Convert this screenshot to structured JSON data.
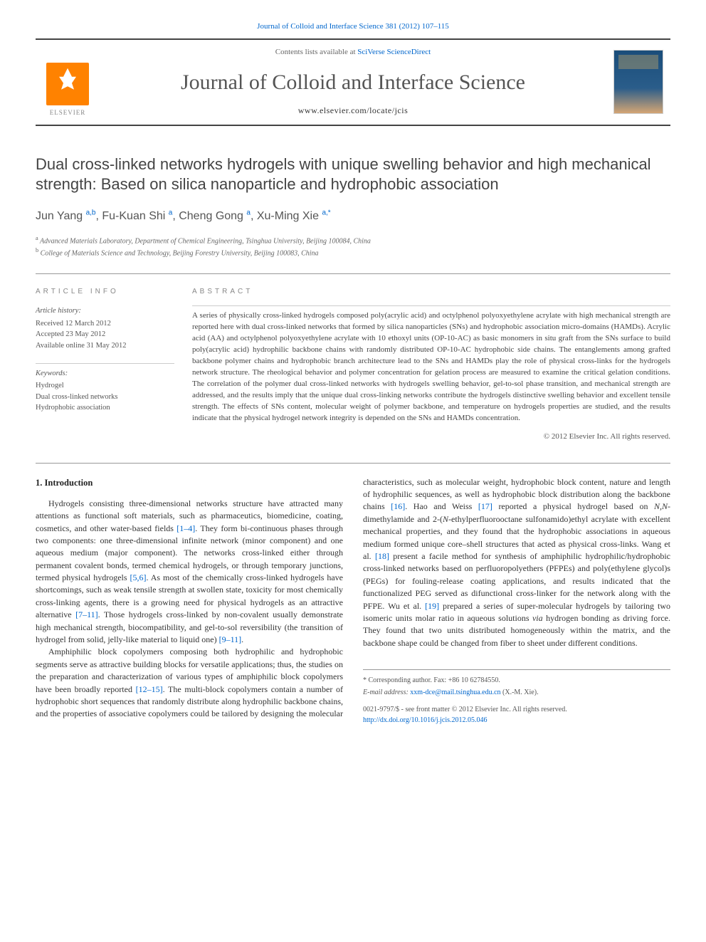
{
  "header": {
    "citation": "Journal of Colloid and Interface Science 381 (2012) 107–115",
    "contents_prefix": "Contents lists available at ",
    "contents_link": "SciVerse ScienceDirect",
    "journal_name": "Journal of Colloid and Interface Science",
    "journal_url": "www.elsevier.com/locate/jcis",
    "publisher_label": "ELSEVIER"
  },
  "title": "Dual cross-linked networks hydrogels with unique swelling behavior and high mechanical strength: Based on silica nanoparticle and hydrophobic association",
  "authors_html": "Jun Yang <sup>a,b</sup>, Fu-Kuan Shi <sup>a</sup>, Cheng Gong <sup>a</sup>, Xu-Ming Xie <sup>a,*</sup>",
  "affiliations": [
    {
      "sup": "a",
      "text": "Advanced Materials Laboratory, Department of Chemical Engineering, Tsinghua University, Beijing 100084, China"
    },
    {
      "sup": "b",
      "text": "College of Materials Science and Technology, Beijing Forestry University, Beijing 100083, China"
    }
  ],
  "info": {
    "label": "ARTICLE INFO",
    "history_heading": "Article history:",
    "history": [
      "Received 12 March 2012",
      "Accepted 23 May 2012",
      "Available online 31 May 2012"
    ],
    "keywords_heading": "Keywords:",
    "keywords": [
      "Hydrogel",
      "Dual cross-linked networks",
      "Hydrophobic association"
    ]
  },
  "abstract": {
    "label": "ABSTRACT",
    "text": "A series of physically cross-linked hydrogels composed poly(acrylic acid) and octylphenol polyoxyethylene acrylate with high mechanical strength are reported here with dual cross-linked networks that formed by silica nanoparticles (SNs) and hydrophobic association micro-domains (HAMDs). Acrylic acid (AA) and octylphenol polyoxyethylene acrylate with 10 ethoxyl units (OP-10-AC) as basic monomers in situ graft from the SNs surface to build poly(acrylic acid) hydrophilic backbone chains with randomly distributed OP-10-AC hydrophobic side chains. The entanglements among grafted backbone polymer chains and hydrophobic branch architecture lead to the SNs and HAMDs play the role of physical cross-links for the hydrogels network structure. The rheological behavior and polymer concentration for gelation process are measured to examine the critical gelation conditions. The correlation of the polymer dual cross-linked networks with hydrogels swelling behavior, gel-to-sol phase transition, and mechanical strength are addressed, and the results imply that the unique dual cross-linking networks contribute the hydrogels distinctive swelling behavior and excellent tensile strength. The effects of SNs content, molecular weight of polymer backbone, and temperature on hydrogels properties are studied, and the results indicate that the physical hydrogel network integrity is depended on the SNs and HAMDs concentration.",
    "copyright": "© 2012 Elsevier Inc. All rights reserved."
  },
  "body": {
    "section_heading": "1. Introduction",
    "para1": "Hydrogels consisting three-dimensional networks structure have attracted many attentions as functional soft materials, such as pharmaceutics, biomedicine, coating, cosmetics, and other water-based fields [1–4]. They form bi-continuous phases through two components: one three-dimensional infinite network (minor component) and one aqueous medium (major component). The networks cross-linked either through permanent covalent bonds, termed chemical hydrogels, or through temporary junctions, termed physical hydrogels [5,6]. As most of the chemically cross-linked hydrogels have shortcomings, such as weak tensile strength at swollen state, toxicity for most chemically cross-linking agents, there is a growing need for physical hydrogels as an attractive alternative [7–11]. Those hydrogels cross-linked by non-covalent usually demonstrate high mechanical strength, biocompatibility, and gel-to-sol reversibility (the transition of hydrogel from solid, jelly-like material to liquid one) [9–11].",
    "para2": "Amphiphilic block copolymers composing both hydrophilic and hydrophobic segments serve as attractive building blocks for versatile applications; thus, the studies on the preparation and characterization of various types of amphiphilic block copolymers have been broadly reported [12–15]. The multi-block copolymers contain a number of hydrophobic short sequences that randomly distribute along hydrophilic backbone chains, and the properties of associative copolymers could be tailored by designing the molecular characteristics, such as molecular weight, hydrophobic block content, nature and length of hydrophilic sequences, as well as hydrophobic block distribution along the backbone chains [16]. Hao and Weiss [17] reported a physical hydrogel based on N,N-dimethylamide and 2-(N-ethylperfluorooctane sulfonamido)ethyl acrylate with excellent mechanical properties, and they found that the hydrophobic associations in aqueous medium formed unique core–shell structures that acted as physical cross-links. Wang et al. [18] present a facile method for synthesis of amphiphilic hydrophilic/hydrophobic cross-linked networks based on perfluoropolyethers (PFPEs) and poly(ethylene glycol)s (PEGs) for fouling-release coating applications, and results indicated that the functionalized PEG served as difunctional cross-linker for the network along with the PFPE. Wu et al. [19] prepared a series of super-molecular hydrogels by tailoring two isomeric units molar ratio in aqueous solutions via hydrogen bonding as driving force. They found that two units distributed homogeneously within the matrix, and the backbone shape could be changed from fiber to sheet under different conditions."
  },
  "footer": {
    "corr_label": "* Corresponding author. Fax: +86 10 62784550.",
    "email_label": "E-mail address: ",
    "email": "xxm-dce@mail.tsinghua.edu.cn",
    "email_suffix": " (X.-M. Xie).",
    "issn_line": "0021-9797/$ - see front matter © 2012 Elsevier Inc. All rights reserved.",
    "doi": "http://dx.doi.org/10.1016/j.jcis.2012.05.046"
  },
  "colors": {
    "link": "#0066cc",
    "elsevier_orange": "#ff8200",
    "text": "#333333",
    "muted": "#666666",
    "rule": "#999999"
  },
  "typography": {
    "body_pt": 12,
    "title_pt": 22,
    "journal_pt": 30,
    "abstract_pt": 11,
    "info_pt": 10.5,
    "footer_pt": 10
  }
}
